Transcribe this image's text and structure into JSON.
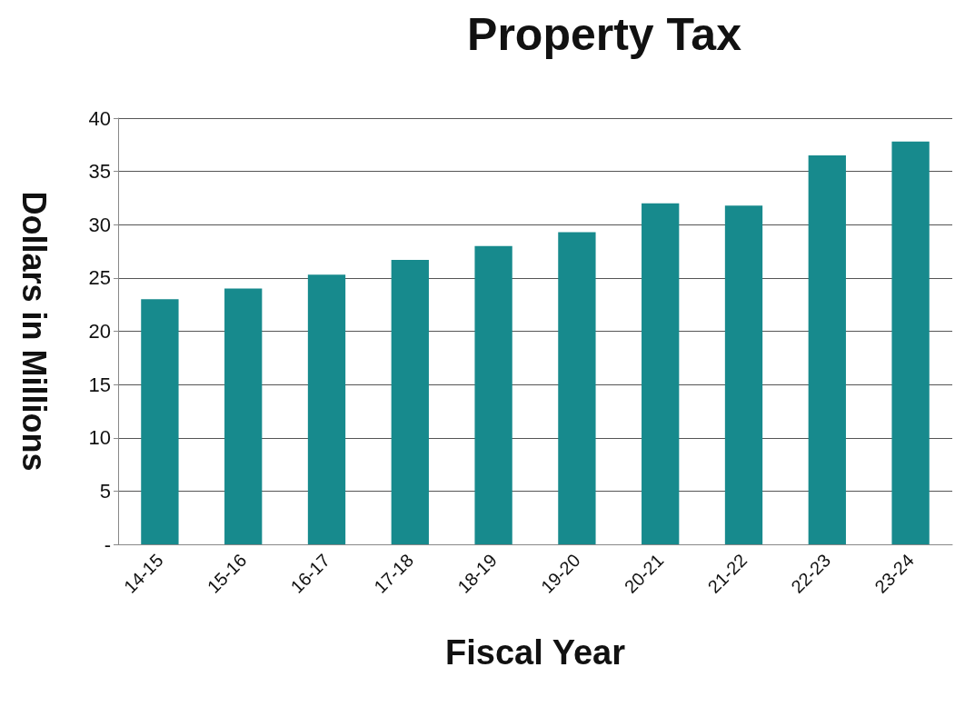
{
  "chart_data": {
    "type": "bar",
    "title": "Property Tax",
    "xlabel": "Fiscal Year",
    "ylabel": "Dollars in Millions",
    "categories": [
      "14-15",
      "15-16",
      "16-17",
      "17-18",
      "18-19",
      "19-20",
      "20-21",
      "21-22",
      "22-23",
      "23-24"
    ],
    "values": [
      23,
      24,
      25.3,
      26.7,
      28,
      29.3,
      32,
      31.8,
      36.5,
      37.8
    ],
    "color": "#178a8d",
    "ylim": [
      0,
      40
    ],
    "yticks": [
      {
        "value": 0,
        "label": "-"
      },
      5,
      10,
      15,
      20,
      25,
      30,
      35,
      40
    ],
    "grid": "y"
  }
}
